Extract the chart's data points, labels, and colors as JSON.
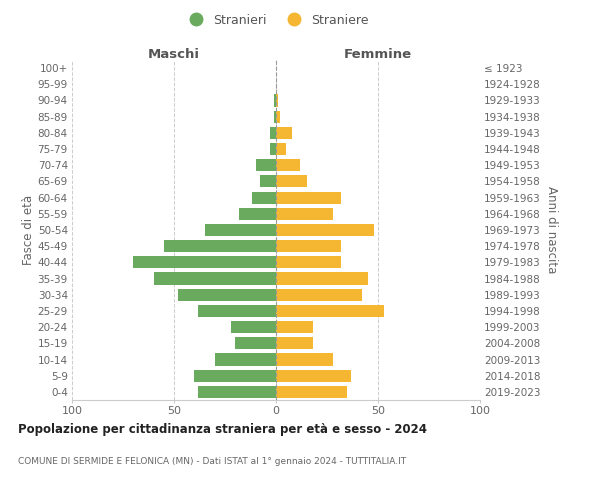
{
  "age_groups": [
    "0-4",
    "5-9",
    "10-14",
    "15-19",
    "20-24",
    "25-29",
    "30-34",
    "35-39",
    "40-44",
    "45-49",
    "50-54",
    "55-59",
    "60-64",
    "65-69",
    "70-74",
    "75-79",
    "80-84",
    "85-89",
    "90-94",
    "95-99",
    "100+"
  ],
  "birth_years": [
    "2019-2023",
    "2014-2018",
    "2009-2013",
    "2004-2008",
    "1999-2003",
    "1994-1998",
    "1989-1993",
    "1984-1988",
    "1979-1983",
    "1974-1978",
    "1969-1973",
    "1964-1968",
    "1959-1963",
    "1954-1958",
    "1949-1953",
    "1944-1948",
    "1939-1943",
    "1934-1938",
    "1929-1933",
    "1924-1928",
    "≤ 1923"
  ],
  "males": [
    38,
    40,
    30,
    20,
    22,
    38,
    48,
    60,
    70,
    55,
    35,
    18,
    12,
    8,
    10,
    3,
    3,
    1,
    1,
    0,
    0
  ],
  "females": [
    35,
    37,
    28,
    18,
    18,
    53,
    42,
    45,
    32,
    32,
    48,
    28,
    32,
    15,
    12,
    5,
    8,
    2,
    1,
    0,
    0
  ],
  "male_color": "#6aaa5e",
  "female_color": "#f5b731",
  "background_color": "#ffffff",
  "grid_color": "#cccccc",
  "title": "Popolazione per cittadinanza straniera per età e sesso - 2024",
  "subtitle": "COMUNE DI SERMIDE E FELONICA (MN) - Dati ISTAT al 1° gennaio 2024 - TUTTITALIA.IT",
  "ylabel_left": "Fasce di età",
  "ylabel_right": "Anni di nascita",
  "header_left": "Maschi",
  "header_right": "Femmine",
  "legend_stranieri": "Stranieri",
  "legend_straniere": "Straniere",
  "xlim": 100
}
